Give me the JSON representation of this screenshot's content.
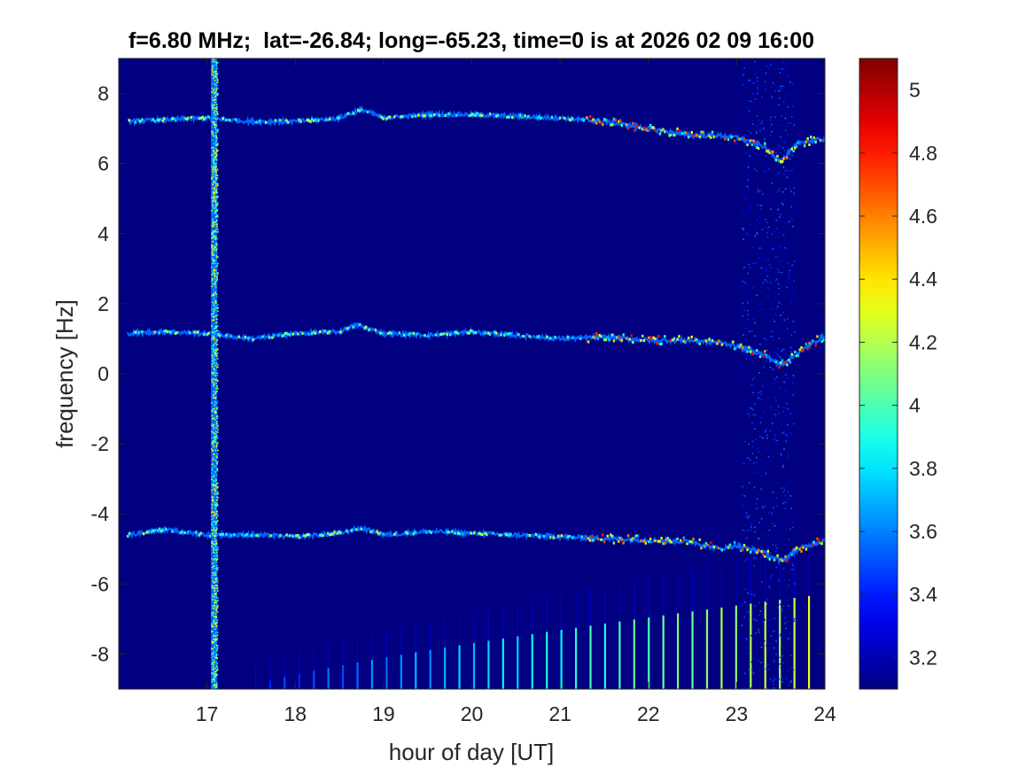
{
  "chart_data": {
    "type": "heatmap",
    "title": "f=6.80 MHz;  lat=-26.84; long=-65.23, time=0 is at 2026 02 09 16:00",
    "xlabel": "hour of day [UT]",
    "ylabel": "frequency [Hz]",
    "xlim": [
      16,
      24
    ],
    "ylim": [
      -9,
      9
    ],
    "x_ticks": [
      17,
      18,
      19,
      20,
      21,
      22,
      23,
      24
    ],
    "x_tick_labels": [
      "17",
      "18",
      "19",
      "20",
      "21",
      "22",
      "23",
      "24"
    ],
    "y_ticks": [
      -8,
      -6,
      -4,
      -2,
      0,
      2,
      4,
      6,
      8
    ],
    "y_tick_labels": [
      "-8",
      "-6",
      "-4",
      "-2",
      "0",
      "2",
      "4",
      "6",
      "8"
    ],
    "colormap": "jet",
    "clim": [
      3.1,
      5.1
    ],
    "colorbar_ticks": [
      3.2,
      3.4,
      3.6,
      3.8,
      4,
      4.2,
      4.4,
      4.6,
      4.8,
      5
    ],
    "colorbar_tick_labels": [
      "3.2",
      "3.4",
      "3.6",
      "3.8",
      "4",
      "4.2",
      "4.4",
      "4.6",
      "4.8",
      "5"
    ],
    "background_value": 3.1,
    "grid": false,
    "traces": [
      {
        "name": "upper",
        "x": [
          16.1,
          16.5,
          17.0,
          17.5,
          18.0,
          18.5,
          18.75,
          19.0,
          19.5,
          20.0,
          20.5,
          21.0,
          21.5,
          22.0,
          22.5,
          22.8,
          23.0,
          23.3,
          23.5,
          23.7,
          24.0
        ],
        "y": [
          7.2,
          7.25,
          7.3,
          7.2,
          7.2,
          7.3,
          7.55,
          7.3,
          7.4,
          7.4,
          7.35,
          7.3,
          7.2,
          7.0,
          6.8,
          6.8,
          6.75,
          6.5,
          6.05,
          6.6,
          6.7
        ]
      },
      {
        "name": "middle",
        "x": [
          16.1,
          16.5,
          17.0,
          17.5,
          18.0,
          18.5,
          18.7,
          19.0,
          19.5,
          20.0,
          20.5,
          21.0,
          21.5,
          22.0,
          22.5,
          22.8,
          23.0,
          23.3,
          23.5,
          23.7,
          24.0
        ],
        "y": [
          1.15,
          1.2,
          1.15,
          1.0,
          1.15,
          1.2,
          1.4,
          1.15,
          1.1,
          1.2,
          1.1,
          1.0,
          1.05,
          0.95,
          0.95,
          0.9,
          0.8,
          0.55,
          0.25,
          0.6,
          1.1
        ]
      },
      {
        "name": "lower",
        "x": [
          16.1,
          16.5,
          17.0,
          17.5,
          18.0,
          18.5,
          18.75,
          19.0,
          19.5,
          20.0,
          20.5,
          21.0,
          21.5,
          22.0,
          22.5,
          22.8,
          23.0,
          23.3,
          23.5,
          23.7,
          24.0
        ],
        "y": [
          -4.6,
          -4.45,
          -4.6,
          -4.6,
          -4.65,
          -4.55,
          -4.4,
          -4.6,
          -4.5,
          -4.55,
          -4.6,
          -4.65,
          -4.7,
          -4.75,
          -4.8,
          -5.0,
          -4.9,
          -5.1,
          -5.35,
          -5.0,
          -4.75
        ]
      }
    ],
    "vertical_band": {
      "x": 17.08,
      "width_hours": 0.07
    },
    "comb_lines": {
      "x_start": 17.55,
      "x_end": 23.95,
      "spacing_hours": 0.165,
      "bottom_y": -9,
      "top_y_start": -8.9,
      "top_y_end": -6.3
    }
  }
}
